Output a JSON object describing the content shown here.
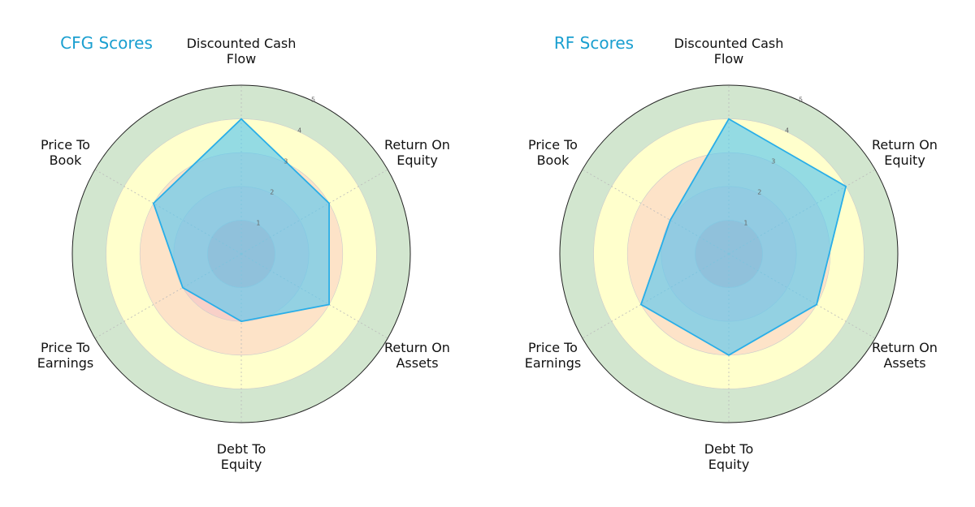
{
  "chart_data": [
    {
      "type": "radar",
      "title": "CFG Scores",
      "categories": [
        "Discounted Cash Flow",
        "Return On Equity",
        "Return On Assets",
        "Debt To Equity",
        "Price To Earnings",
        "Price To Book"
      ],
      "values": [
        4,
        3,
        3,
        2,
        2,
        3
      ],
      "color": "#29aee8",
      "ylim": [
        0,
        5
      ],
      "yticks": [
        1,
        2,
        3,
        4,
        5
      ],
      "ring_colors": [
        "#f4b5b5",
        "#f8d0c8",
        "#fde3c8",
        "#ffffcc",
        "#d2e6cf"
      ]
    },
    {
      "type": "radar",
      "title": "RF Scores",
      "categories": [
        "Discounted Cash Flow",
        "Return On Equity",
        "Return On Assets",
        "Debt To Equity",
        "Price To Earnings",
        "Price To Book"
      ],
      "values": [
        4,
        4,
        3,
        3,
        3,
        2
      ],
      "color": "#29aee8",
      "ylim": [
        0,
        5
      ],
      "yticks": [
        1,
        2,
        3,
        4,
        5
      ],
      "ring_colors": [
        "#f4b5b5",
        "#f8d0c8",
        "#fde3c8",
        "#ffffcc",
        "#d2e6cf"
      ]
    }
  ]
}
